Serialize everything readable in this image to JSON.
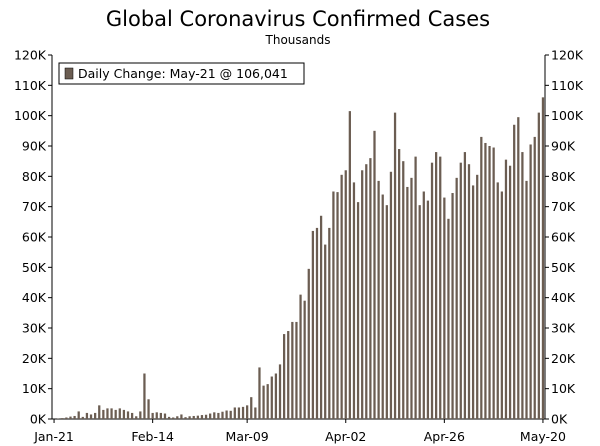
{
  "chart_data": {
    "type": "bar",
    "title": "Global Coronavirus Confirmed Cases",
    "subtitle": "Thousands",
    "legend": {
      "label": "Daily Change: May-21 @ 106,041",
      "position": "top-left"
    },
    "series_color": "#6b5d52",
    "grid": false,
    "ylim": [
      0,
      120000
    ],
    "y_ticks": [
      0,
      10000,
      20000,
      30000,
      40000,
      50000,
      60000,
      70000,
      80000,
      90000,
      100000,
      110000,
      120000
    ],
    "y_tick_labels": [
      "0K",
      "10K",
      "20K",
      "30K",
      "40K",
      "50K",
      "60K",
      "70K",
      "80K",
      "90K",
      "100K",
      "110K",
      "120K"
    ],
    "x_tick_labels": [
      {
        "index": 0,
        "label": "Jan-21"
      },
      {
        "index": 24,
        "label": "Feb-14"
      },
      {
        "index": 47,
        "label": "Mar-09"
      },
      {
        "index": 71,
        "label": "Apr-02"
      },
      {
        "index": 95,
        "label": "Apr-26"
      },
      {
        "index": 119,
        "label": "May-20"
      }
    ],
    "start_label": "Jan-21",
    "end_label": "May-21",
    "values": [
      0,
      100,
      300,
      500,
      800,
      1000,
      2500,
      700,
      2000,
      1500,
      2000,
      4500,
      3000,
      3500,
      3500,
      3000,
      3500,
      3000,
      2500,
      2000,
      900,
      2500,
      15000,
      6500,
      2000,
      2200,
      2000,
      1800,
      700,
      500,
      900,
      1500,
      600,
      900,
      1000,
      1100,
      1300,
      1400,
      1800,
      2200,
      2000,
      2400,
      2800,
      2700,
      3800,
      3800,
      4000,
      4500,
      7200,
      3800,
      17000,
      11000,
      11500,
      14000,
      15000,
      18000,
      28000,
      29000,
      32000,
      32000,
      41000,
      39000,
      49500,
      62000,
      63000,
      67000,
      57500,
      63000,
      75000,
      74800,
      80500,
      82000,
      101500,
      78000,
      71500,
      82000,
      84000,
      86000,
      95000,
      78500,
      74000,
      70500,
      81500,
      101000,
      89000,
      85000,
      76500,
      79500,
      86500,
      70500,
      75000,
      72000,
      84500,
      88000,
      86500,
      73000,
      66000,
      74500,
      79500,
      84500,
      88000,
      84000,
      77000,
      80500,
      93000,
      91000,
      90000,
      89500,
      78000,
      75000,
      85500,
      83500,
      97000,
      99500,
      88000,
      78500,
      90500,
      93000,
      101000,
      106041
    ]
  }
}
